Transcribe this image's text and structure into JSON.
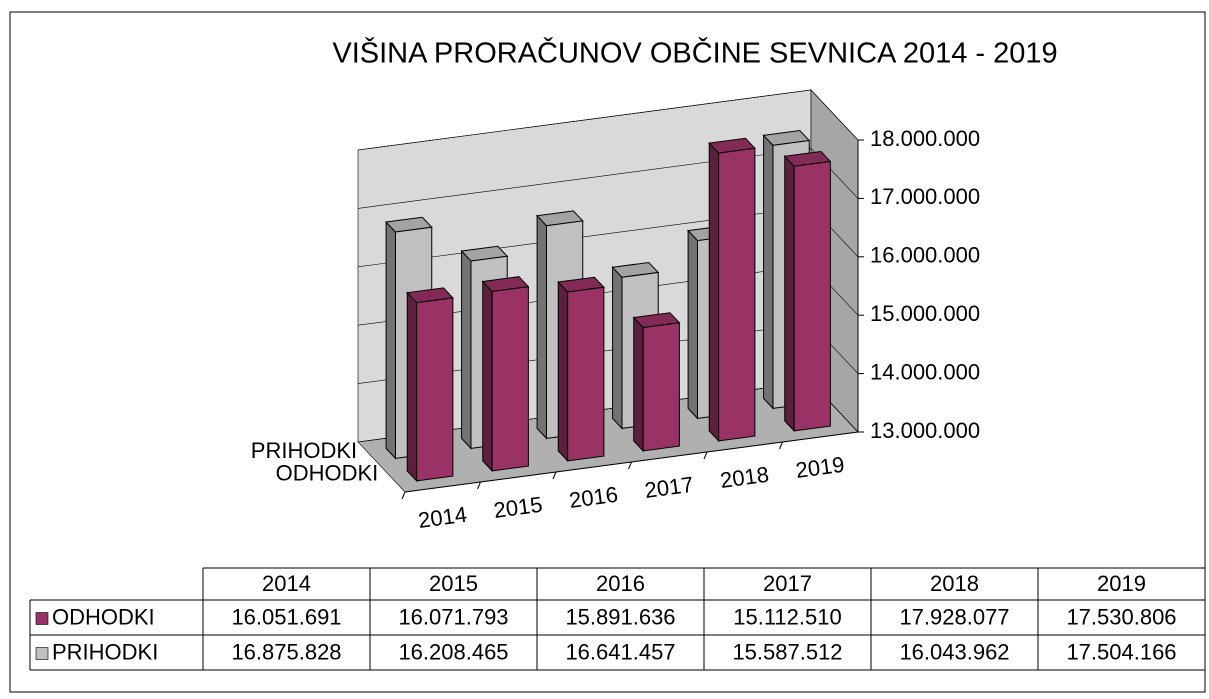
{
  "chart_data": {
    "type": "bar3d",
    "title": "VIŠINA PRORAČUNOV OBČINE SEVNICA  2014 - 2019",
    "categories": [
      "2014",
      "2015",
      "2016",
      "2017",
      "2018",
      "2019"
    ],
    "series": [
      {
        "name": "ODHODKI",
        "color": "#993366",
        "values": [
          16051691,
          16071793,
          15891636,
          15112510,
          17928077,
          17530806
        ],
        "value_labels": [
          "16.051.691",
          "16.071.793",
          "15.891.636",
          "15.112.510",
          "17.928.077",
          "17.530.806"
        ]
      },
      {
        "name": "PRIHODKI",
        "color": "#c0c0c0",
        "values": [
          16875828,
          16208465,
          16641457,
          15587512,
          16043962,
          17504166
        ],
        "value_labels": [
          "16.875.828",
          "16.208.465",
          "16.641.457",
          "15.587.512",
          "16.043.962",
          "17.504.166"
        ]
      }
    ],
    "ylim": [
      13000000,
      18000000
    ],
    "yticks": [
      {
        "value": 13000000,
        "label": "13.000.000"
      },
      {
        "value": 14000000,
        "label": "14.000.000"
      },
      {
        "value": 15000000,
        "label": "15.000.000"
      },
      {
        "value": 16000000,
        "label": "16.000.000"
      },
      {
        "value": 17000000,
        "label": "17.000.000"
      },
      {
        "value": 18000000,
        "label": "18.000.000"
      }
    ],
    "grid": true,
    "data_table": true
  }
}
